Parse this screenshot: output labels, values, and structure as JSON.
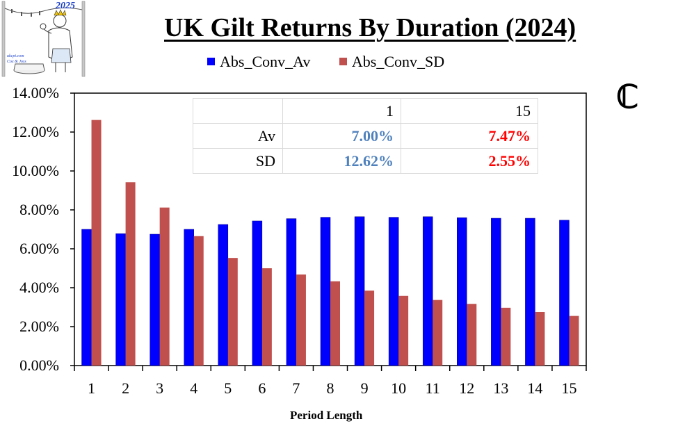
{
  "logo": {
    "year": "2025",
    "site": "ukcpi.com",
    "author": "Cox & Joss"
  },
  "chart_data": {
    "type": "bar",
    "title": "UK Gilt Returns By Duration (2024)",
    "xlabel": "Period Length",
    "ylabel": "",
    "ylim": [
      0,
      0.14
    ],
    "yticks": [
      "0.00%",
      "2.00%",
      "4.00%",
      "6.00%",
      "8.00%",
      "10.00%",
      "12.00%",
      "14.00%"
    ],
    "categories": [
      "1",
      "2",
      "3",
      "4",
      "5",
      "6",
      "7",
      "8",
      "9",
      "10",
      "11",
      "12",
      "13",
      "14",
      "15"
    ],
    "legend_position": "top",
    "series": [
      {
        "name": "Abs_Conv_Av",
        "color": "#0000ff",
        "values": [
          0.07,
          0.0678,
          0.0675,
          0.07,
          0.0725,
          0.0743,
          0.0755,
          0.0762,
          0.0765,
          0.0762,
          0.0765,
          0.076,
          0.0757,
          0.0757,
          0.0747
        ]
      },
      {
        "name": "Abs_Conv_SD",
        "color": "#c0504d",
        "values": [
          0.1262,
          0.0942,
          0.0812,
          0.0665,
          0.0553,
          0.05,
          0.0468,
          0.0433,
          0.0385,
          0.0358,
          0.0337,
          0.0317,
          0.0297,
          0.0275,
          0.0255
        ]
      }
    ],
    "table": {
      "header": [
        "",
        "1",
        "15"
      ],
      "rows": [
        {
          "label": "Av",
          "values": [
            "7.00%",
            "7.47%"
          ]
        },
        {
          "label": "SD",
          "values": [
            "12.62%",
            "2.55%"
          ]
        }
      ]
    },
    "grid": false
  },
  "copyright_symbol": "ℂ"
}
